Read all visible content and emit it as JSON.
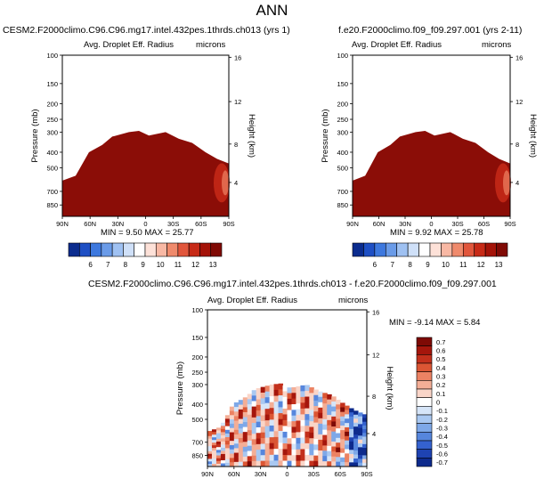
{
  "figure_title": "ANN",
  "chart_data": [
    {
      "type": "heatmap",
      "title": "CESM2.F2000climo.C96.C96.mg17.intel.432pes.1thrds.ch013 (yrs 1)",
      "subtitle": "Avg. Droplet Eff. Radius",
      "units": "microns",
      "ylabel": "Pressure (mb)",
      "y2label": "Height (km)",
      "x_ticks": [
        "90N",
        "60N",
        "30N",
        "0",
        "30S",
        "60S",
        "90S"
      ],
      "y_ticks": [
        "100",
        "150",
        "200",
        "250",
        "300",
        "400",
        "500",
        "700",
        "850"
      ],
      "y2_ticks": [
        "16",
        "12",
        "8",
        "4"
      ],
      "ylim": [
        100,
        1000
      ],
      "stats": "MIN =  9.50  MAX =  25.77",
      "colorbar_labels": [
        "6",
        "7",
        "8",
        "9",
        "10",
        "11",
        "12",
        "13"
      ],
      "colors": {
        "field": "#8b0d07",
        "edge": "#c72a17"
      }
    },
    {
      "type": "heatmap",
      "title": "f.e20.F2000climo.f09_f09.297.001 (yrs 2-11)",
      "subtitle": "Avg. Droplet Eff. Radius",
      "units": "microns",
      "ylabel": "Pressure (mb)",
      "y2label": "Height (km)",
      "x_ticks": [
        "90N",
        "60N",
        "30N",
        "0",
        "30S",
        "60S",
        "90S"
      ],
      "y_ticks": [
        "100",
        "150",
        "200",
        "250",
        "300",
        "400",
        "500",
        "700",
        "850"
      ],
      "y2_ticks": [
        "16",
        "12",
        "8",
        "4"
      ],
      "ylim": [
        100,
        1000
      ],
      "stats": "MIN =  9.92  MAX =  25.78",
      "colorbar_labels": [
        "6",
        "7",
        "8",
        "9",
        "10",
        "11",
        "12",
        "13"
      ],
      "colors": {
        "field": "#8b0d07",
        "edge": "#c72a17"
      }
    },
    {
      "type": "heatmap",
      "title": "CESM2.F2000climo.C96.C96.mg17.intel.432pes.1thrds.ch013 - f.e20.F2000climo.f09_f09.297.001",
      "subtitle": "Avg. Droplet Eff. Radius",
      "units": "microns",
      "ylabel": "Pressure (mb)",
      "y2label": "Height (km)",
      "x_ticks": [
        "90N",
        "60N",
        "30N",
        "0",
        "30S",
        "60S",
        "90S"
      ],
      "y_ticks": [
        "100",
        "150",
        "200",
        "250",
        "300",
        "400",
        "500",
        "700",
        "850"
      ],
      "y2_ticks": [
        "16",
        "12",
        "8",
        "4"
      ],
      "ylim": [
        100,
        1000
      ],
      "stats": "MIN = -9.14  MAX =   5.84",
      "colorbar_labels": [
        "0.7",
        "0.6",
        "0.5",
        "0.4",
        "0.3",
        "0.2",
        "0.1",
        "0",
        "-0.1",
        "-0.2",
        "-0.3",
        "-0.4",
        "-0.5",
        "-0.6",
        "-0.7"
      ],
      "colors": {
        "positive": "#a5160c",
        "negative": "#3558c8"
      }
    }
  ],
  "colorbar_palettes": {
    "absolute": [
      "#0b2c8e",
      "#1e4fc4",
      "#3d78de",
      "#6a9be8",
      "#9fc1f2",
      "#cfe0f8",
      "#ffffff",
      "#fde1d8",
      "#f8b8a4",
      "#ef8a6c",
      "#e1563c",
      "#c72a17",
      "#a41308",
      "#800a05"
    ],
    "difference": [
      "#7e0a05",
      "#a5160c",
      "#c3301c",
      "#db5634",
      "#ec8263",
      "#f4ae96",
      "#fad5c8",
      "#ffffff",
      "#d6e5f8",
      "#a9c8f1",
      "#7ea8e8",
      "#5686dd",
      "#3562cf",
      "#1e43b2",
      "#0d2a8c"
    ]
  }
}
